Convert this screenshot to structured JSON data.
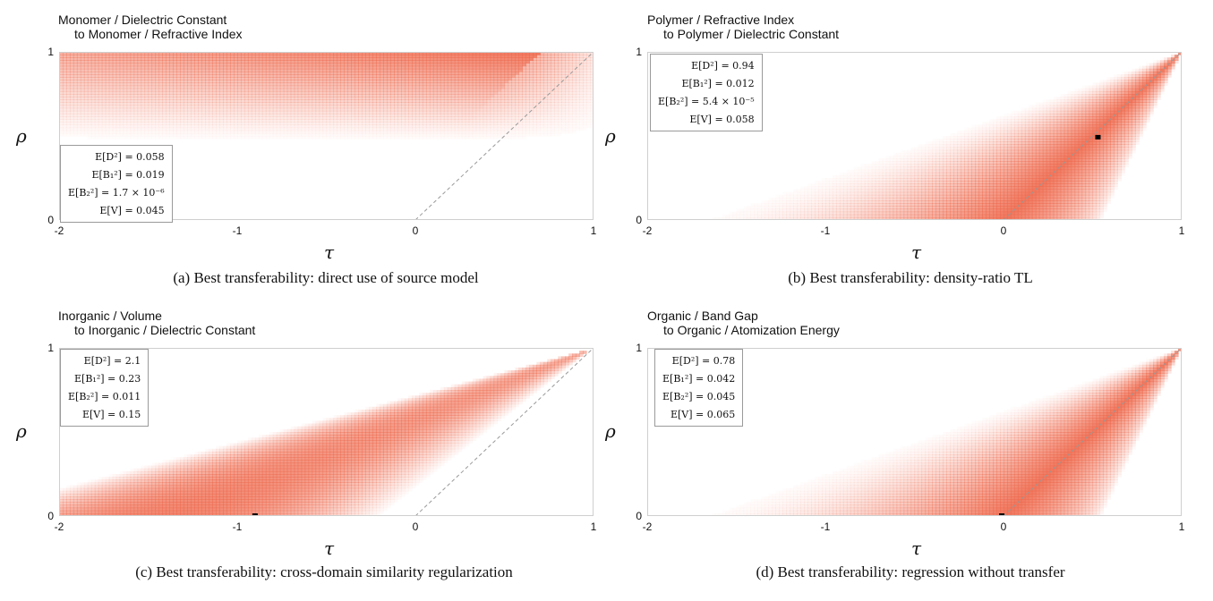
{
  "chart_data": [
    {
      "type": "heatmap",
      "title": [
        "Monomer / Dielectric Constant",
        "to Monomer / Refractive Index"
      ],
      "caption": "(a) Best transferability: direct use of source model",
      "xlabel": "τ",
      "ylabel": "ρ",
      "xlim": [
        -2,
        1
      ],
      "ylim": [
        0,
        1
      ],
      "x_ticks": [
        "-2",
        "-1",
        "0",
        "1"
      ],
      "y_ticks": [
        "0",
        "1"
      ],
      "stats": [
        "E[D²] = 0.058",
        "E[B₁²] = 0.019",
        "E[B₂²] = 1.7 × 10⁻⁶",
        "E[V] = 0.045"
      ],
      "best_point": null,
      "regime": "top"
    },
    {
      "type": "heatmap",
      "title": [
        "Polymer / Refractive Index",
        "to Polymer / Dielectric Constant"
      ],
      "caption": "(b) Best transferability: density-ratio TL",
      "xlabel": "τ",
      "ylabel": "ρ",
      "xlim": [
        -2,
        1
      ],
      "ylim": [
        0,
        1
      ],
      "x_ticks": [
        "-2",
        "-1",
        "0",
        "1"
      ],
      "y_ticks": [
        "0",
        "1"
      ],
      "stats": [
        "E[D²] = 0.94",
        "E[B₁²] = 0.012",
        "E[B₂²] = 5.4 × 10⁻⁵",
        "E[V] = 0.058"
      ],
      "best_point": {
        "tau": 0.53,
        "rho": 0.49
      },
      "regime": "diagonal"
    },
    {
      "type": "heatmap",
      "title": [
        "Inorganic / Volume",
        "to Inorganic / Dielectric Constant"
      ],
      "caption": "(c) Best transferability: cross-domain similarity regularization",
      "xlabel": "τ",
      "ylabel": "ρ",
      "xlim": [
        -2,
        1
      ],
      "ylim": [
        0,
        1
      ],
      "x_ticks": [
        "-2",
        "-1",
        "0",
        "1"
      ],
      "y_ticks": [
        "0",
        "1"
      ],
      "stats": [
        "E[D²] = 2.1",
        "E[B₁²] = 0.23",
        "E[B₂²] = 0.011",
        "E[V] = 0.15"
      ],
      "best_point": {
        "tau": -0.9,
        "rho": 0.0
      },
      "regime": "wide"
    },
    {
      "type": "heatmap",
      "title": [
        "Organic / Band Gap",
        "to Organic / Atomization Energy"
      ],
      "caption": "(d) Best transferability: regression without transfer",
      "xlabel": "τ",
      "ylabel": "ρ",
      "xlim": [
        -2,
        1
      ],
      "ylim": [
        0,
        1
      ],
      "x_ticks": [
        "-2",
        "-1",
        "0",
        "1"
      ],
      "y_ticks": [
        "0",
        "1"
      ],
      "stats": [
        "E[D²] = 0.78",
        "E[B₁²] = 0.042",
        "E[B₂²] = 0.045",
        "E[V] = 0.065"
      ],
      "best_point": {
        "tau": -0.01,
        "rho": 0.0
      },
      "regime": "diagonal"
    }
  ],
  "colors": {
    "heat": "#ee6a4e",
    "diagonal": "#999999",
    "marker": "#000000"
  }
}
